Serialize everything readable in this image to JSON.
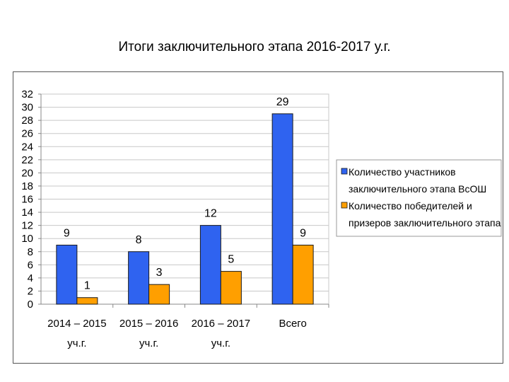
{
  "title": "Итоги заключительного этапа 2016-2017 у.г.",
  "chart_data": {
    "type": "bar",
    "categories": [
      [
        "2014 – 2015",
        "уч.г."
      ],
      [
        "2015 – 2016",
        "уч.г."
      ],
      [
        "2016 – 2017",
        "уч.г."
      ],
      [
        "Всего"
      ]
    ],
    "series": [
      {
        "name": [
          "Количество участников",
          "заключительного этапа ВсОШ"
        ],
        "color": "#2f63f0",
        "values": [
          9,
          8,
          12,
          29
        ]
      },
      {
        "name": [
          "Количество победителей и",
          "призеров заключительного этапа"
        ],
        "color": "#ff9f00",
        "values": [
          1,
          3,
          5,
          9
        ]
      }
    ],
    "ylim": [
      0,
      32
    ],
    "ytick_step": 2,
    "grid": true,
    "legend": "right"
  }
}
